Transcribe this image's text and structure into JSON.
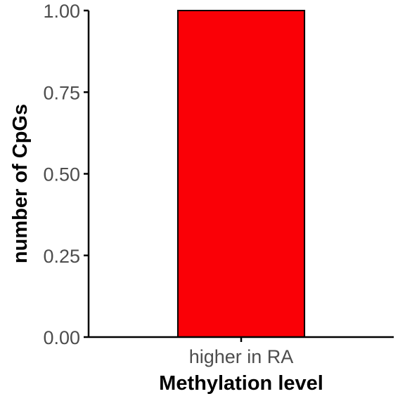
{
  "chart_data": {
    "type": "bar",
    "title": "",
    "xlabel": "Methylation level",
    "ylabel": "number of CpGs",
    "categories": [
      "higher in RA"
    ],
    "values": [
      1.0
    ],
    "ylim": [
      0,
      1
    ],
    "yticks": [
      "0.00",
      "0.25",
      "0.50",
      "0.75",
      "1.00"
    ],
    "bar_color": "#fa0006",
    "bar_outline_color": "#000000",
    "grid": false,
    "legend": "none"
  }
}
